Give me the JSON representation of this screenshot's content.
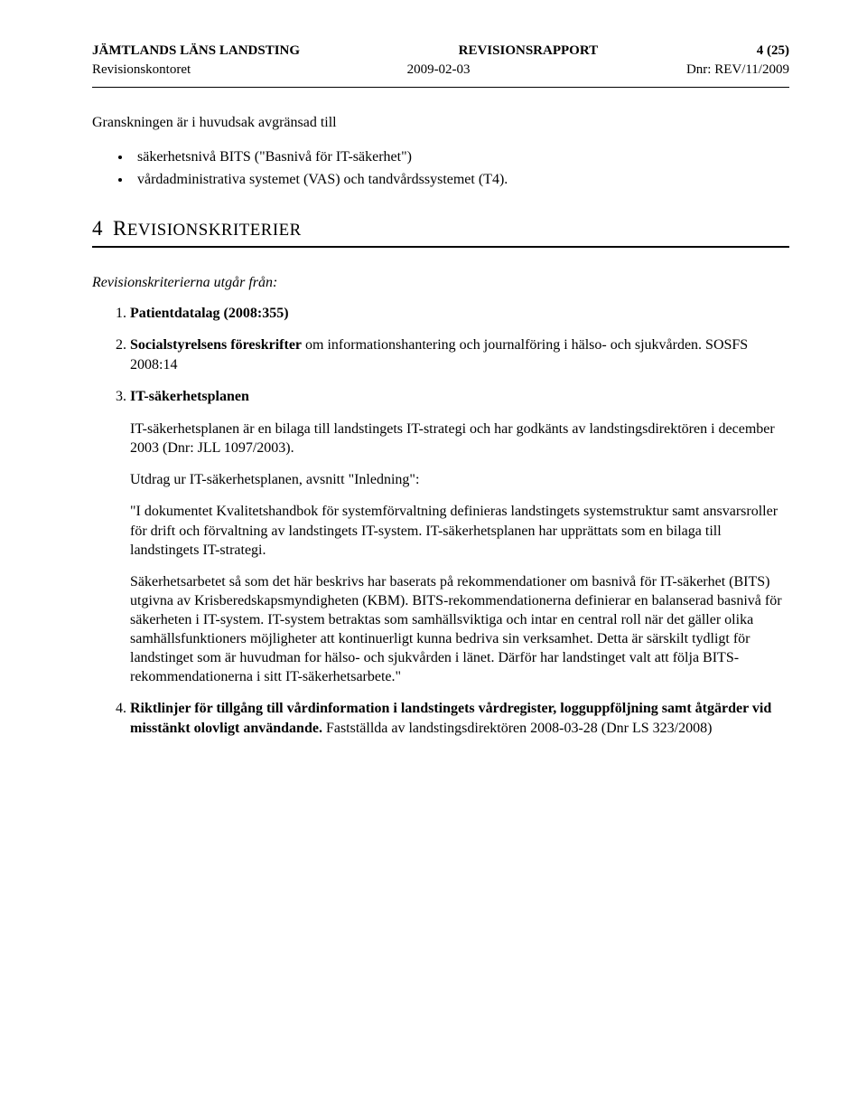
{
  "header": {
    "org": "JÄMTLANDS LÄNS LANDSTING",
    "doc_type": "REVISIONSRAPPORT",
    "page_indicator": "4 (25)",
    "office": "Revisionskontoret",
    "date": "2009-02-03",
    "dnr": "Dnr: REV/11/2009"
  },
  "intro_para": "Granskningen är i huvudsak avgränsad till",
  "bullets": [
    "säkerhetsnivå BITS (\"Basnivå för IT-säkerhet\")",
    "vårdadministrativa systemet (VAS) och tandvårdssystemet (T4)."
  ],
  "section4": {
    "number": "4",
    "title": "REVISIONSKRITERIER",
    "lead": "Revisionskriterierna utgår från:",
    "items": [
      {
        "title": "Patientdatalag (2008:355)"
      },
      {
        "title": "Socialstyrelsens föreskrifter",
        "inline_rest": " om informationshantering och journalföring i hälso- och sjukvården. SOSFS 2008:14"
      },
      {
        "title": "IT-säkerhetsplanen",
        "body": [
          "IT-säkerhetsplanen är en bilaga till landstingets IT-strategi och har godkänts av landstingsdirektören i december 2003 (Dnr: JLL 1097/2003).",
          "Utdrag ur IT-säkerhetsplanen, avsnitt \"Inledning\":",
          "\"I dokumentet Kvalitetshandbok för systemförvaltning definieras landstingets systemstruktur samt ansvarsroller för drift och förvaltning av landstingets IT-system. IT-säkerhetsplanen har upprättats som en bilaga till landstingets IT-strategi.",
          "Säkerhetsarbetet så som det här beskrivs har baserats på rekommendationer om basnivå för IT-säkerhet (BITS) utgivna av Krisberedskapsmyndigheten (KBM). BITS-rekommendationerna definierar en balanserad basnivå för säkerheten i IT-system. IT-system betraktas som samhällsviktiga och intar en central roll när det gäller olika samhällsfunktioners möjligheter att kontinuerligt kunna bedriva sin verksamhet. Detta är särskilt tydligt för landstinget som är huvudman for hälso- och sjukvården i länet. Därför har landstinget valt att följa BITS-rekommendationerna i sitt IT-säkerhetsarbete.\""
        ]
      },
      {
        "title": "Riktlinjer för tillgång till vårdinformation i landstingets vårdregister, logguppföljning samt åtgärder vid misstänkt olovligt användande.",
        "inline_rest": " Fastställda av landstingsdirektören 2008-03-28 (Dnr LS 323/2008)"
      }
    ]
  },
  "typography": {
    "body_fontsize_pt": 12,
    "heading_fontsize_pt": 17,
    "font_family": "Times New Roman",
    "text_color": "#000000",
    "background_color": "#ffffff",
    "divider_color": "#000000"
  }
}
